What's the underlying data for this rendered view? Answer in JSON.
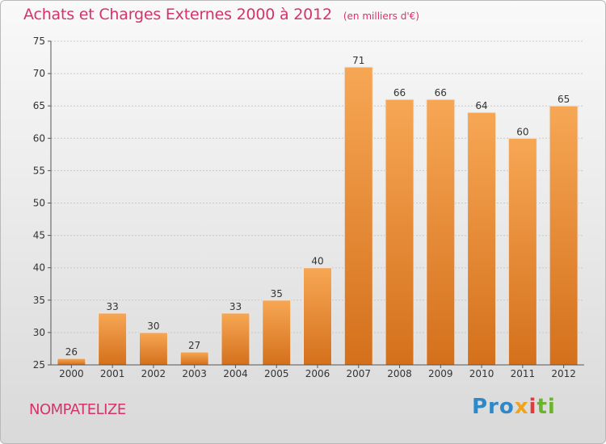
{
  "chart_data": {
    "type": "bar",
    "title": "Achats et Charges Externes 2000 à 2012",
    "subtitle": "(en milliers d'€)",
    "categories": [
      "2000",
      "2001",
      "2002",
      "2003",
      "2004",
      "2005",
      "2006",
      "2007",
      "2008",
      "2009",
      "2010",
      "2011",
      "2012"
    ],
    "values": [
      26,
      33,
      30,
      27,
      33,
      35,
      40,
      71,
      66,
      66,
      64,
      60,
      65
    ],
    "ylim": [
      25,
      75
    ],
    "yticks": [
      25,
      30,
      35,
      40,
      45,
      50,
      55,
      60,
      65,
      70,
      75
    ],
    "grid": true,
    "xlabel": "",
    "ylabel": ""
  },
  "location": "NOMPATELIZE",
  "brand": {
    "letters": [
      "Pro",
      "x",
      "i",
      "ti"
    ]
  },
  "colors": {
    "bar_top": "#f7a754",
    "bar_bottom": "#d4701c",
    "title": "#d4336b"
  }
}
